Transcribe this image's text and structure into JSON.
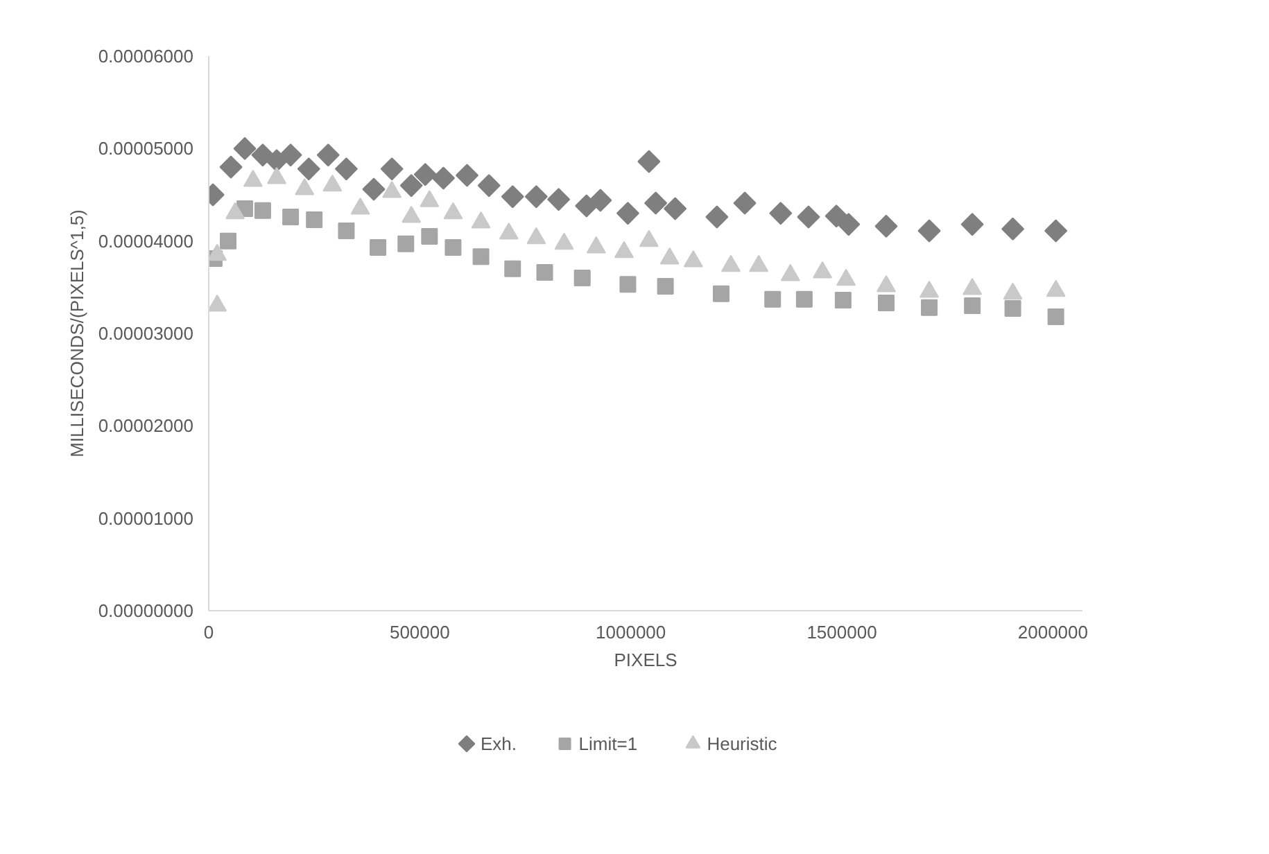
{
  "chart_data": {
    "type": "scatter",
    "xlabel": "PIXELS",
    "ylabel": "MILLISECONDS/(PIXELS^1,5)",
    "xlim": [
      0,
      2070000
    ],
    "xticks": [
      0,
      500000,
      1000000,
      1500000,
      2000000
    ],
    "ylim": [
      0,
      6e-05
    ],
    "yticks": [
      {
        "value": 0,
        "label": "0.00000000"
      },
      {
        "value": 1e-05,
        "label": "0.00001000"
      },
      {
        "value": 2e-05,
        "label": "0.00002000"
      },
      {
        "value": 3e-05,
        "label": "0.00003000"
      },
      {
        "value": 4e-05,
        "label": "0.00004000"
      },
      {
        "value": 5e-05,
        "label": "0.00005000"
      },
      {
        "value": 6e-05,
        "label": "0.00006000"
      }
    ],
    "grid": false,
    "legend": "bottom",
    "series": [
      {
        "name": "Exh.",
        "color": "#7f7f7f",
        "marker": "diamond",
        "x": [
          10000,
          52600,
          85500,
          128000,
          161000,
          194000,
          237000,
          283000,
          326000,
          391000,
          434000,
          480000,
          513000,
          556000,
          612000,
          664000,
          720000,
          776000,
          829000,
          895000,
          928000,
          993000,
          1043000,
          1059000,
          1105000,
          1204000,
          1270000,
          1355000,
          1421000,
          1487000,
          1516000,
          1605000,
          1707000,
          1809000,
          1905000,
          2007000
        ],
        "values": [
          4.5e-05,
          4.8e-05,
          5e-05,
          4.93e-05,
          4.87e-05,
          4.93e-05,
          4.78e-05,
          4.93e-05,
          4.78e-05,
          4.56e-05,
          4.78e-05,
          4.6e-05,
          4.72e-05,
          4.68e-05,
          4.71e-05,
          4.6e-05,
          4.48e-05,
          4.48e-05,
          4.45e-05,
          4.38e-05,
          4.44e-05,
          4.3e-05,
          4.86e-05,
          4.41e-05,
          4.35e-05,
          4.26e-05,
          4.41e-05,
          4.3e-05,
          4.26e-05,
          4.27e-05,
          4.18e-05,
          4.16e-05,
          4.11e-05,
          4.18e-05,
          4.13e-05,
          4.11e-05
        ]
      },
      {
        "name": "Limit=1",
        "color": "#a5a5a5",
        "marker": "square",
        "x": [
          13000,
          46000,
          85500,
          128000,
          194000,
          250000,
          326000,
          401000,
          467000,
          523000,
          579000,
          645000,
          720000,
          796000,
          885000,
          993000,
          1082000,
          1214000,
          1336000,
          1411000,
          1503000,
          1605000,
          1707000,
          1809000,
          1905000,
          2007000
        ],
        "values": [
          3.81e-05,
          4e-05,
          4.35e-05,
          4.33e-05,
          4.26e-05,
          4.23e-05,
          4.11e-05,
          3.93e-05,
          3.97e-05,
          4.05e-05,
          3.93e-05,
          3.83e-05,
          3.7e-05,
          3.66e-05,
          3.6e-05,
          3.53e-05,
          3.51e-05,
          3.43e-05,
          3.37e-05,
          3.37e-05,
          3.36e-05,
          3.33e-05,
          3.28e-05,
          3.3e-05,
          3.27e-05,
          3.18e-05
        ]
      },
      {
        "name": "Heuristic",
        "color": "#c9c9c9",
        "marker": "triangle",
        "x": [
          20000,
          20000,
          62500,
          105000,
          161000,
          227000,
          293000,
          359000,
          434000,
          480000,
          523000,
          579000,
          645000,
          711000,
          776000,
          842000,
          918000,
          984000,
          1043000,
          1092000,
          1148000,
          1237000,
          1303000,
          1378000,
          1454000,
          1510000,
          1605000,
          1707000,
          1809000,
          1905000,
          2007000
        ],
        "values": [
          3.3e-05,
          3.85e-05,
          4.3e-05,
          4.65e-05,
          4.68e-05,
          4.56e-05,
          4.6e-05,
          4.35e-05,
          4.53e-05,
          4.26e-05,
          4.43e-05,
          4.3e-05,
          4.2e-05,
          4.08e-05,
          4.03e-05,
          3.97e-05,
          3.93e-05,
          3.88e-05,
          4e-05,
          3.81e-05,
          3.78e-05,
          3.73e-05,
          3.73e-05,
          3.63e-05,
          3.66e-05,
          3.58e-05,
          3.51e-05,
          3.45e-05,
          3.48e-05,
          3.43e-05,
          3.46e-05
        ]
      }
    ]
  }
}
